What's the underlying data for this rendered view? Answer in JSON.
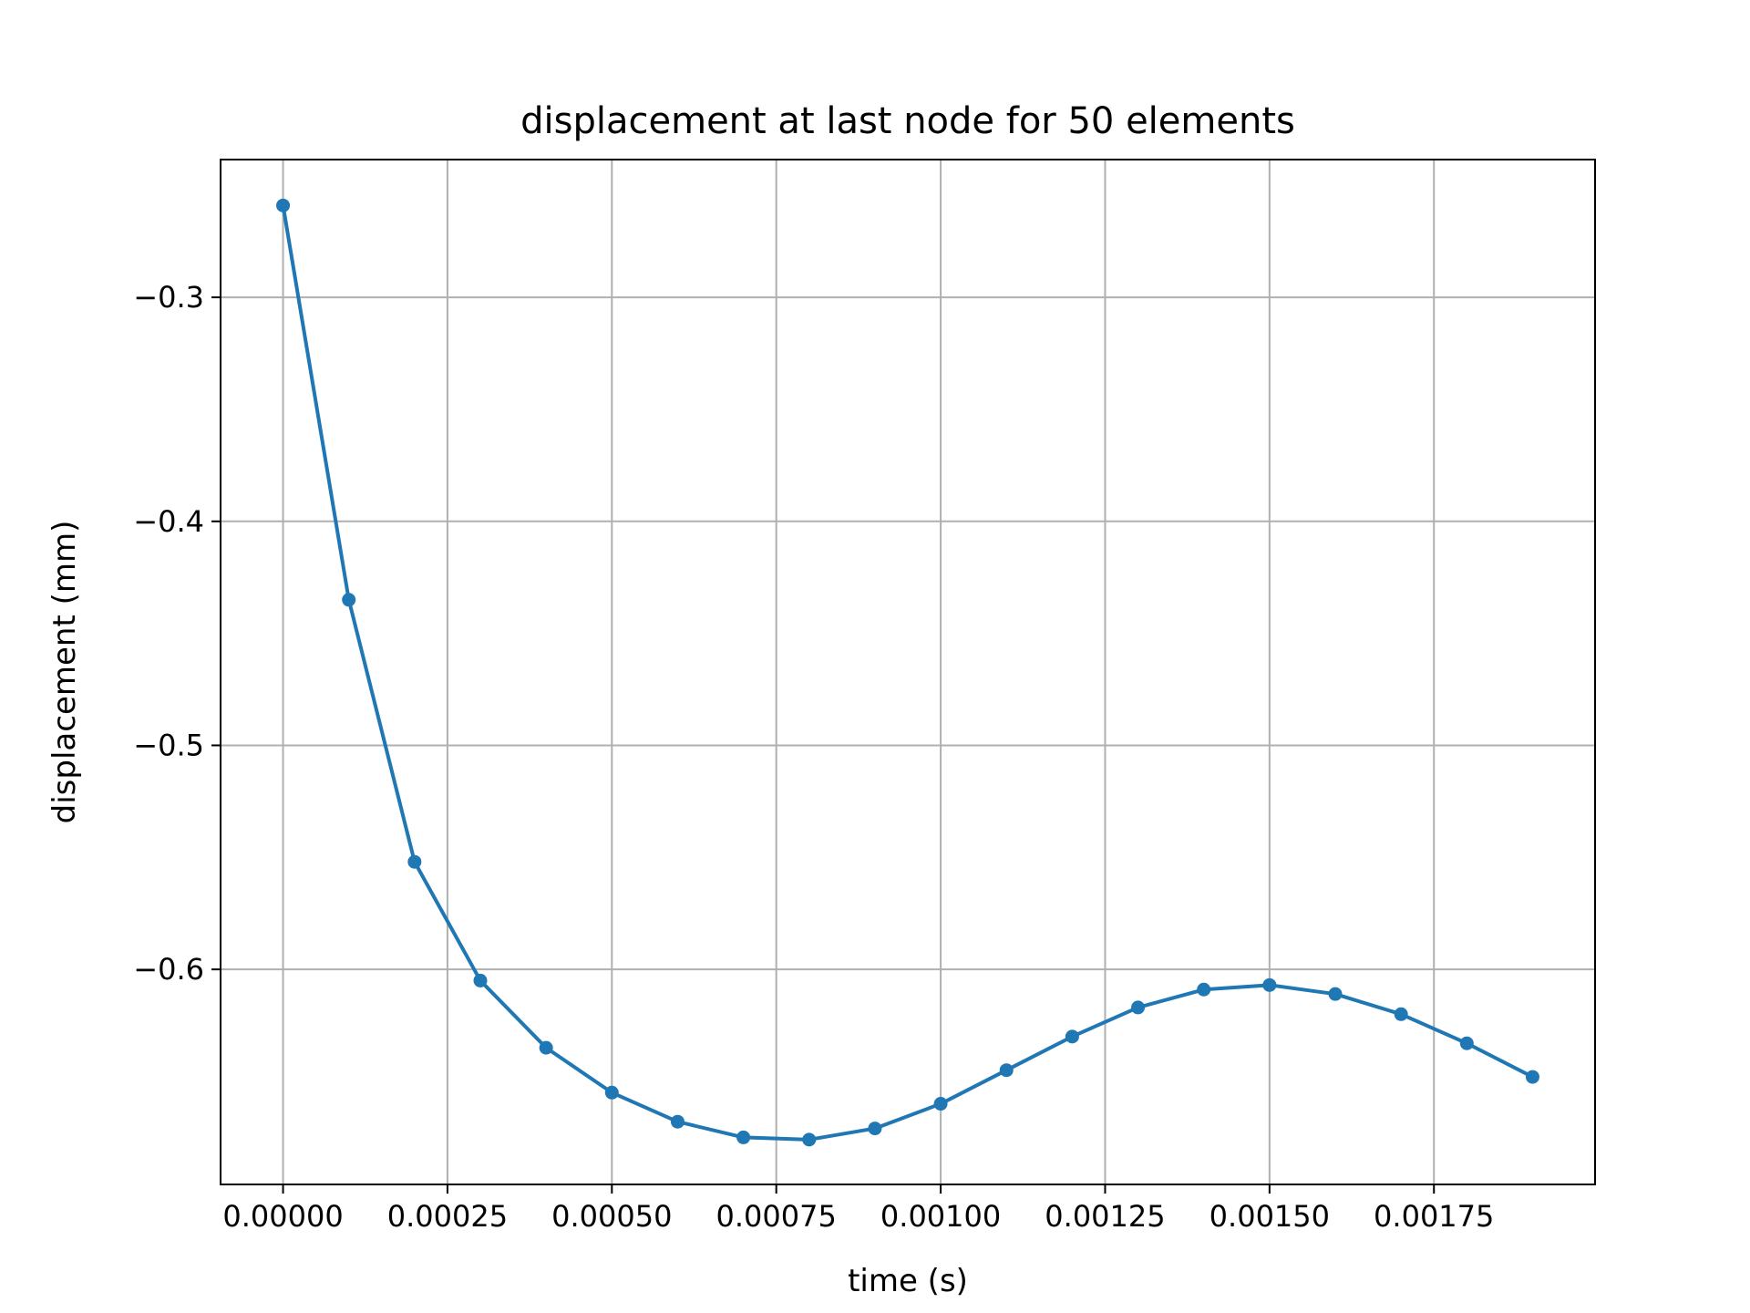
{
  "chart_data": {
    "type": "line",
    "title": "displacement at last node for 50 elements",
    "xlabel": "time (s)",
    "ylabel": "displacement (mm)",
    "xlim": [
      -9.5e-05,
      0.001995
    ],
    "ylim": [
      -0.696,
      -0.2385
    ],
    "xticks": [
      0,
      0.00025,
      0.0005,
      0.00075,
      0.001,
      0.00125,
      0.0015,
      0.00175
    ],
    "xtick_labels": [
      "0.00000",
      "0.00025",
      "0.00050",
      "0.00075",
      "0.00100",
      "0.00125",
      "0.00150",
      "0.00175"
    ],
    "yticks": [
      -0.3,
      -0.4,
      -0.5,
      -0.6
    ],
    "ytick_labels": [
      "−0.3",
      "−0.4",
      "−0.5",
      "−0.6"
    ],
    "grid": true,
    "series": [
      {
        "color": "#1f77b4",
        "marker": "circle",
        "x": [
          0,
          0.0001,
          0.0002,
          0.0003,
          0.0004,
          0.0005,
          0.0006,
          0.0007,
          0.0008,
          0.0009,
          0.001,
          0.0011,
          0.0012,
          0.0013,
          0.0014,
          0.0015,
          0.0016,
          0.0017,
          0.0018,
          0.0019
        ],
        "y": [
          -0.259,
          -0.435,
          -0.552,
          -0.605,
          -0.635,
          -0.655,
          -0.668,
          -0.675,
          -0.676,
          -0.671,
          -0.66,
          -0.645,
          -0.63,
          -0.617,
          -0.609,
          -0.607,
          -0.611,
          -0.62,
          -0.633,
          -0.648
        ]
      }
    ]
  }
}
